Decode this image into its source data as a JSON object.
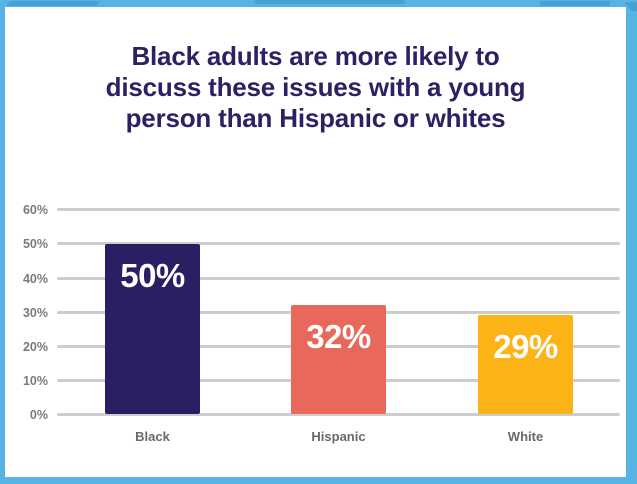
{
  "frame": {
    "border_color": "#58b3e5",
    "background_color": "#ffffff"
  },
  "title": {
    "text": "Black adults are more likely to discuss these issues with a young person than Hispanic or whites",
    "lines": [
      "Black adults are more likely to",
      "discuss these issues with a young",
      "person than Hispanic or whites"
    ],
    "color": "#2b2263"
  },
  "chart_data": {
    "type": "bar",
    "title": "Black adults are more likely to discuss these issues with a young person than Hispanic or whites",
    "categories": [
      "Black",
      "Hispanic",
      "White"
    ],
    "values": [
      50,
      32,
      29
    ],
    "value_labels": [
      "50%",
      "32%",
      "29%"
    ],
    "bar_colors": [
      "#2a1f62",
      "#e8695c",
      "#fcb316"
    ],
    "value_label_color": "#ffffff",
    "xlabel": "",
    "ylabel": "",
    "ylim": [
      0,
      60
    ],
    "ytick_labels": [
      "60%",
      "50%",
      "40%",
      "30%",
      "20%",
      "10%",
      "0%"
    ],
    "grid": true,
    "gridline_color": "#cdcdcd",
    "tick_label_color": "#7b7b7b",
    "category_label_color": "#696969",
    "legend": "none"
  }
}
